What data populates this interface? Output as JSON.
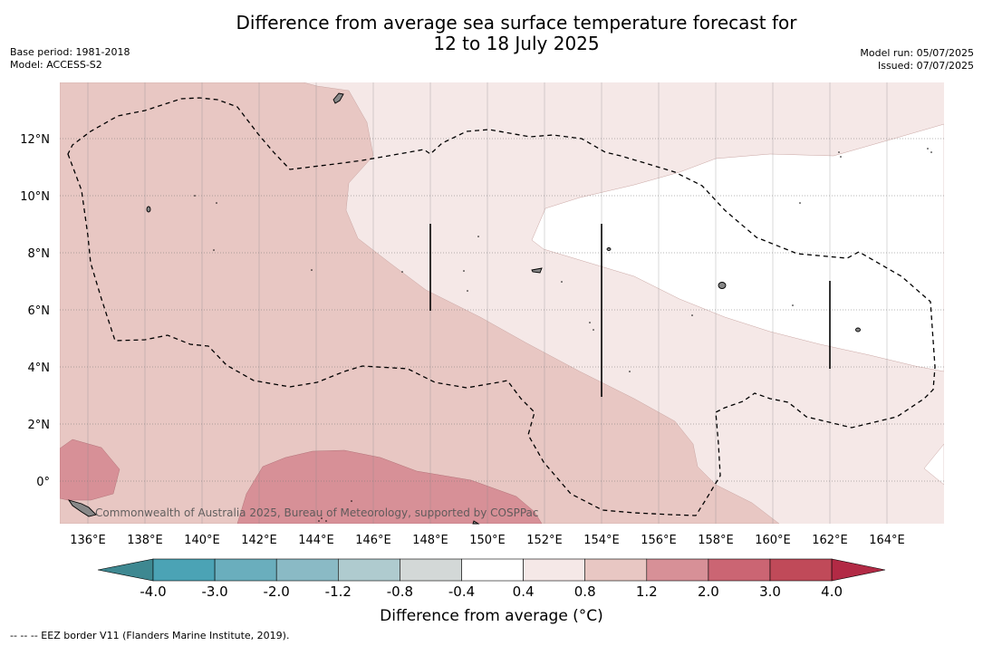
{
  "title": {
    "line1": "Difference from average sea surface temperature forecast for",
    "line2": "12 to 18 July 2025"
  },
  "meta_left": {
    "base_period": "Base period: 1981-2018",
    "model": "Model: ACCESS-S2"
  },
  "meta_right": {
    "model_run": "Model run: 05/07/2025",
    "issued": "Issued: 07/07/2025"
  },
  "map": {
    "lon_range": [
      135,
      166
    ],
    "lat_range": [
      -1.5,
      14
    ],
    "x_ticks": [
      "136°E",
      "138°E",
      "140°E",
      "142°E",
      "144°E",
      "146°E",
      "148°E",
      "150°E",
      "152°E",
      "154°E",
      "156°E",
      "158°E",
      "160°E",
      "162°E",
      "164°E"
    ],
    "y_ticks": [
      "12°N",
      "10°N",
      "8°N",
      "6°N",
      "4°N",
      "2°N",
      "0°"
    ],
    "watermark": "Commonwealth of Australia 2025, Bureau of Meteorology, supported by COSPPac"
  },
  "colorbar": {
    "title": "Difference from average (°C)",
    "tick_labels": [
      "-4.0",
      "-3.0",
      "-2.0",
      "-1.2",
      "-0.8",
      "-0.4",
      "0.4",
      "0.8",
      "1.2",
      "2.0",
      "3.0",
      "4.0"
    ],
    "colors": [
      "#3e8891",
      "#4ba3b5",
      "#6aaebd",
      "#8abac5",
      "#afcbcf",
      "#d3d8d7",
      "#ffffff",
      "#f5e8e7",
      "#e8c7c3",
      "#d79097",
      "#cb6573",
      "#c04a59"
    ],
    "extend_low_color": "#3e8891",
    "extend_high_color": "#b22a45"
  },
  "footer": "--  --  -- EEZ border V11 (Flanders Marine Institute, 2019)."
}
